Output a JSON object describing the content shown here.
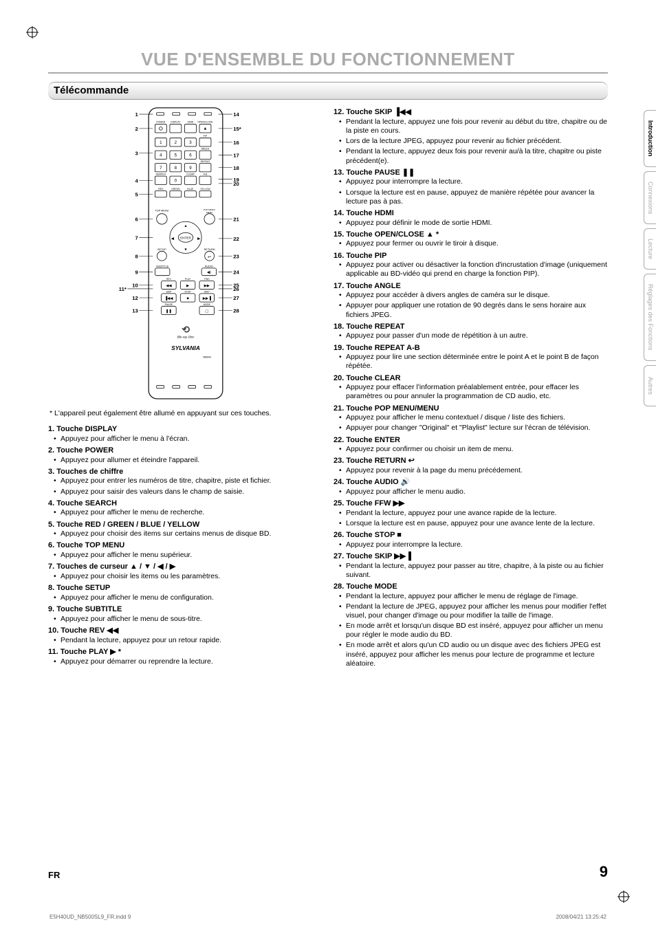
{
  "page": {
    "mainTitle": "VUE D'ENSEMBLE DU FONCTIONNEMENT",
    "sectionTitle": "Télécommande",
    "langCode": "FR",
    "pageNumber": "9",
    "footerFile": "E5H40UD_NB500SL9_FR.indd   9",
    "footerDate": "2008/04/21   13:25:42"
  },
  "tabs": [
    {
      "label": "Introduction",
      "active": true
    },
    {
      "label": "Connexions",
      "active": false
    },
    {
      "label": "Lecture",
      "active": false
    },
    {
      "label": "Réglages des Fonctions",
      "active": false
    },
    {
      "label": "Autres",
      "active": false
    }
  ],
  "remoteNote": "* L'appareil peut également être allumé en appuyant sur ces touches.",
  "remote": {
    "leftLabels": [
      "1",
      "2",
      "3",
      "4",
      "5",
      "6",
      "7",
      "8",
      "9",
      "10",
      "11*",
      "12",
      "13"
    ],
    "rightLabels": [
      "14",
      "15*",
      "16",
      "17",
      "18",
      "19",
      "20",
      "21",
      "22",
      "23",
      "24",
      "25",
      "26",
      "27",
      "28"
    ],
    "brand": "SYLVANIA",
    "model": "NB500",
    "buttonRowsTop": [
      [
        "POWER",
        "DISPLAY",
        "HDMI",
        "OPEN/CLOSE"
      ]
    ],
    "keypadRows": [
      [
        "1",
        "2",
        "3",
        "PIP"
      ],
      [
        "4",
        "5",
        "6",
        "ANGLE"
      ],
      [
        "7",
        "8",
        "9",
        "REPEAT"
      ],
      [
        "SEARCH",
        "0",
        "CLEAR",
        "A-B"
      ]
    ],
    "colorRow": [
      "RED",
      "GREEN",
      "BLUE",
      "YELLOW"
    ],
    "menuRow": [
      "TOP MENU",
      "",
      "",
      "POP MENU/MENU"
    ],
    "cursorCenter": "ENTER",
    "setupReturnRow": [
      "SETUP",
      "",
      "",
      "RETURN"
    ],
    "subtitleAudioRow": [
      "SUBTITLE",
      "",
      "",
      "AUDIO"
    ],
    "transportRow1": [
      "REV",
      "PLAY",
      "FWD"
    ],
    "transportRow2": [
      "SKIP",
      "STOP",
      "SKIP"
    ],
    "transportRow3": [
      "PAUSE",
      "",
      "MODE"
    ],
    "logo": "Blu-ray Disc"
  },
  "itemsLeft": [
    {
      "num": "1.",
      "title": "Touche DISPLAY",
      "bullets": [
        "Appuyez pour afficher le menu à l'écran."
      ]
    },
    {
      "num": "2.",
      "title": "Touche POWER",
      "bullets": [
        "Appuyez pour allumer et éteindre l'appareil."
      ]
    },
    {
      "num": "3.",
      "title": "Touches de chiffre",
      "bullets": [
        "Appuyez pour entrer les numéros de titre, chapitre, piste et fichier.",
        "Appuyez pour saisir des valeurs dans le champ de saisie."
      ]
    },
    {
      "num": "4.",
      "title": "Touche SEARCH",
      "bullets": [
        "Appuyez pour afficher le menu de recherche."
      ]
    },
    {
      "num": "5.",
      "title": "Touche RED / GREEN / BLUE / YELLOW",
      "bullets": [
        "Appuyez pour choisir des items sur certains menus de disque BD."
      ]
    },
    {
      "num": "6.",
      "title": "Touche TOP MENU",
      "bullets": [
        "Appuyez pour afficher le menu supérieur."
      ]
    },
    {
      "num": "7.",
      "title": "Touches de curseur ▲ / ▼ / ◀ / ▶",
      "bullets": [
        "Appuyez pour choisir les items ou les paramètres."
      ]
    },
    {
      "num": "8.",
      "title": "Touche SETUP",
      "bullets": [
        "Appuyez pour afficher le menu de configuration."
      ]
    },
    {
      "num": "9.",
      "title": "Touche SUBTITLE",
      "bullets": [
        "Appuyez pour afficher le menu de sous-titre."
      ]
    },
    {
      "num": "10.",
      "title": "Touche REV ◀◀",
      "bullets": [
        "Pendant la lecture, appuyez pour un retour rapide."
      ]
    },
    {
      "num": "11.",
      "title": "Touche PLAY ▶ *",
      "bullets": [
        "Appuyez pour démarrer ou reprendre la lecture."
      ]
    }
  ],
  "itemsRight": [
    {
      "num": "12.",
      "title": "Touche SKIP ▐◀◀",
      "bullets": [
        "Pendant la lecture, appuyez une fois pour revenir au début du titre, chapitre ou de la piste en cours.",
        "Lors de la lecture JPEG, appuyez pour revenir au fichier précédent.",
        "Pendant la lecture, appuyez deux fois pour revenir au/à la titre, chapitre ou piste précédent(e)."
      ]
    },
    {
      "num": "13.",
      "title": "Touche PAUSE ❚❚",
      "bullets": [
        "Appuyez pour interrompre la lecture.",
        "Lorsque la lecture est en pause, appuyez de manière répétée pour avancer la lecture pas à pas."
      ]
    },
    {
      "num": "14.",
      "title": "Touche HDMI",
      "bullets": [
        "Appuyez pour définir le mode de sortie HDMI."
      ]
    },
    {
      "num": "15.",
      "title": "Touche OPEN/CLOSE ▲ *",
      "bullets": [
        "Appuyez pour fermer ou ouvrir le tiroir à disque."
      ]
    },
    {
      "num": "16.",
      "title": "Touche PIP",
      "bullets": [
        "Appuyez pour activer ou désactiver la fonction d'incrustation d'image (uniquement applicable au BD-vidéo qui prend en charge la fonction PIP)."
      ]
    },
    {
      "num": "17.",
      "title": "Touche ANGLE",
      "bullets": [
        "Appuyez pour accéder à divers angles de caméra sur le disque.",
        "Appuyer pour appliquer une rotation de 90 degrés dans le sens horaire aux fichiers JPEG."
      ]
    },
    {
      "num": "18.",
      "title": "Touche REPEAT",
      "bullets": [
        "Appuyez pour passer d'un mode de répétition à un autre."
      ]
    },
    {
      "num": "19.",
      "title": "Touche REPEAT A-B",
      "bullets": [
        "Appuyez pour lire une section déterminée entre le point A et le point B de façon répétée."
      ]
    },
    {
      "num": "20.",
      "title": "Touche CLEAR",
      "bullets": [
        "Appuyez pour effacer l'information préalablement entrée, pour effacer les paramètres ou pour annuler la programmation de CD audio, etc."
      ]
    },
    {
      "num": "21.",
      "title": "Touche POP MENU/MENU",
      "bullets": [
        "Appuyez pour afficher le menu contextuel / disque / liste des fichiers.",
        "Appuyer pour changer \"Original\" et \"Playlist\" lecture sur l'écran de télévision."
      ]
    },
    {
      "num": "22.",
      "title": "Touche ENTER",
      "bullets": [
        "Appuyez pour confirmer ou choisir un item de menu."
      ]
    },
    {
      "num": "23.",
      "title": "Touche RETURN ↩",
      "bullets": [
        "Appuyez pour revenir à la page du menu précédement."
      ]
    },
    {
      "num": "24.",
      "title": "Touche AUDIO 🔊",
      "bullets": [
        "Appuyez pour afficher le menu audio."
      ]
    },
    {
      "num": "25.",
      "title": "Touche FFW ▶▶",
      "bullets": [
        "Pendant la lecture, appuyez pour une avance rapide de la lecture.",
        "Lorsque la lecture est en pause, appuyez pour une avance lente de la lecture."
      ]
    },
    {
      "num": "26.",
      "title": "Touche STOP ■",
      "bullets": [
        "Appuyez pour interrompre la lecture."
      ]
    },
    {
      "num": "27.",
      "title": "Touche SKIP ▶▶▐",
      "bullets": [
        "Pendant la lecture, appuyez pour passer au titre, chapitre, à la piste ou au fichier suivant."
      ]
    },
    {
      "num": "28.",
      "title": "Touche MODE",
      "bullets": [
        "Pendant la lecture, appuyez pour afficher le menu de réglage de l'image.",
        "Pendant la lecture de JPEG, appuyez pour afficher les menus pour modifier l'effet visuel, pour changer d'image ou pour modifier la taille de l'image.",
        "En mode arrêt et lorsqu'un disque BD est inséré, appuyez pour afficher un menu pour régler le mode audio du BD.",
        "En mode arrêt et alors qu'un CD audio ou un disque avec des fichiers JPEG  est inséré, appuyez pour afficher les menus pour lecture de programme et lecture aléatoire."
      ]
    }
  ]
}
